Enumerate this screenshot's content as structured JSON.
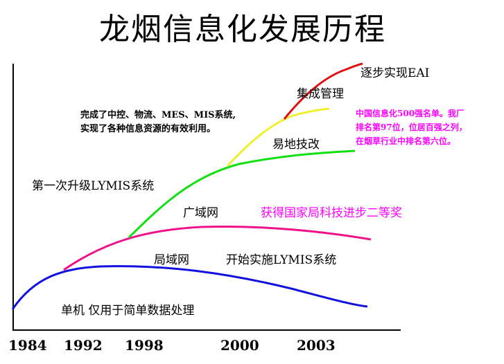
{
  "title": "龙烟信息化发展历程",
  "years": [
    "1984",
    "1992",
    "1998",
    "2000",
    "2003"
  ],
  "stages": {
    "s1": "单机  仅用于简单数据处理",
    "s2": "局域网",
    "s3": "开始实施LYMIS系统",
    "s4": "广域网",
    "s5": "获得国家局科技进步二等奖",
    "s6": "第一次升级LYMIS系统",
    "s7_line1": "完成了中控、物流、MES、MIS系统,",
    "s7_line2": "实现了各种信息资源的有效利用。",
    "s8": "易地技改",
    "s9": "集成管理",
    "s10": "逐步实现EAI",
    "s11_line1": "中国信息化500强名单。我厂",
    "s11_line2": "排名第97位，位居百强之列，",
    "s11_line3": "在烟草行业中排名第六位。"
  },
  "colors": {
    "blue": "#1010e0",
    "magenta": "#f0108a",
    "green": "#10e010",
    "yellow": "#f0f030",
    "red": "#e01010",
    "pink_text": "#ff00ff"
  }
}
